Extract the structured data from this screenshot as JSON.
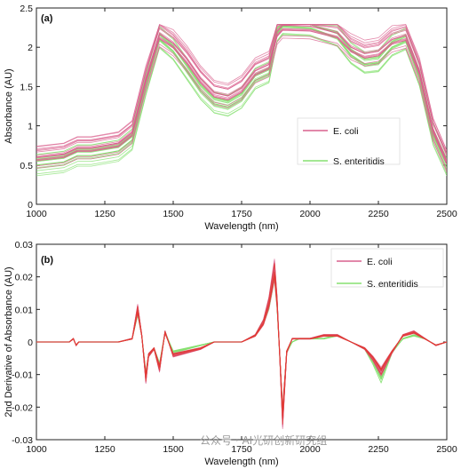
{
  "watermark": "公众号 · AI光研创新研究组",
  "chart_data": [
    {
      "type": "line",
      "panel_label": "(a)",
      "xlabel": "Wavelength (nm)",
      "ylabel": "Absorbance (AU)",
      "xlim": [
        1000,
        2500
      ],
      "ylim": [
        0,
        2.5
      ],
      "xticks": [
        1000,
        1250,
        1500,
        1750,
        2000,
        2250,
        2500
      ],
      "yticks": [
        0,
        0.5,
        1,
        1.5,
        2,
        2.5
      ],
      "xtick_labels": [
        "1000",
        "1250",
        "1500",
        "1750",
        "2000",
        "2250",
        "2500"
      ],
      "ytick_labels": [
        "0",
        "0.5",
        "1",
        "1.5",
        "2",
        "2.5"
      ],
      "legend_position": "center-right",
      "grid": false,
      "series": [
        {
          "name": "E. coli",
          "color": "#d9608e",
          "x": [
            1000,
            1100,
            1150,
            1200,
            1300,
            1350,
            1400,
            1450,
            1500,
            1550,
            1600,
            1650,
            1700,
            1750,
            1800,
            1850,
            1880,
            1900,
            2000,
            2100,
            2150,
            2200,
            2250,
            2300,
            2350,
            2400,
            2450,
            2500
          ],
          "y": [
            0.6,
            0.64,
            0.72,
            0.72,
            0.78,
            0.92,
            1.6,
            2.17,
            2.05,
            1.85,
            1.6,
            1.42,
            1.38,
            1.48,
            1.7,
            1.78,
            2.2,
            2.28,
            2.27,
            2.18,
            2.0,
            1.92,
            1.95,
            2.1,
            2.15,
            1.7,
            0.95,
            0.55
          ]
        },
        {
          "name": "S. enteritidis",
          "color": "#86e070",
          "x": [
            1000,
            1100,
            1150,
            1200,
            1300,
            1350,
            1400,
            1450,
            1500,
            1550,
            1600,
            1650,
            1700,
            1750,
            1800,
            1850,
            1880,
            1900,
            2000,
            2100,
            2150,
            2200,
            2250,
            2300,
            2350,
            2400,
            2450,
            2500
          ],
          "y": [
            0.5,
            0.54,
            0.62,
            0.62,
            0.68,
            0.82,
            1.5,
            2.1,
            1.95,
            1.7,
            1.45,
            1.28,
            1.24,
            1.34,
            1.58,
            1.66,
            2.18,
            2.27,
            2.25,
            2.12,
            1.9,
            1.78,
            1.8,
            2.0,
            2.08,
            1.62,
            0.88,
            0.5
          ]
        }
      ]
    },
    {
      "type": "line",
      "panel_label": "(b)",
      "xlabel": "Wavelength (nm)",
      "ylabel": "2nd Derivative of Absorbance (AU)",
      "xlim": [
        1000,
        2500
      ],
      "ylim": [
        -0.03,
        0.03
      ],
      "xticks": [
        1000,
        1250,
        1500,
        1750,
        2000,
        2250,
        2500
      ],
      "yticks": [
        -0.03,
        -0.02,
        -0.01,
        0,
        0.01,
        0.02,
        0.03
      ],
      "xtick_labels": [
        "1000",
        "1250",
        "1500",
        "1750",
        "2000",
        "2250",
        "2500"
      ],
      "ytick_labels": [
        "-0.03",
        "-0.02",
        "-0.01",
        "0",
        "0.01",
        "0.02",
        "0.03"
      ],
      "legend_position": "top-right",
      "grid": false,
      "series": [
        {
          "name": "E. coli",
          "color": "#d9608e",
          "x": [
            1000,
            1120,
            1135,
            1145,
            1155,
            1300,
            1350,
            1370,
            1385,
            1400,
            1410,
            1430,
            1450,
            1470,
            1500,
            1550,
            1600,
            1650,
            1700,
            1750,
            1800,
            1830,
            1850,
            1870,
            1880,
            1890,
            1900,
            1915,
            1935,
            1960,
            2000,
            2050,
            2100,
            2150,
            2200,
            2230,
            2260,
            2280,
            2300,
            2340,
            2380,
            2420,
            2460,
            2500
          ],
          "y": [
            0,
            0,
            0.001,
            -0.001,
            0,
            0,
            0.001,
            0.01,
            0.002,
            -0.011,
            -0.004,
            -0.002,
            -0.008,
            0.003,
            -0.004,
            -0.003,
            -0.002,
            0.0,
            0.0,
            0.0,
            0.002,
            0.006,
            0.012,
            0.022,
            0.012,
            -0.005,
            -0.023,
            -0.003,
            0.001,
            0.001,
            0.001,
            0.002,
            0.002,
            0.0,
            -0.002,
            -0.005,
            -0.009,
            -0.006,
            -0.003,
            0.002,
            0.003,
            0.001,
            -0.001,
            0.0
          ]
        },
        {
          "name": "S. enteritidis",
          "color": "#86e070",
          "x": [
            1000,
            1120,
            1135,
            1145,
            1155,
            1300,
            1350,
            1370,
            1385,
            1400,
            1410,
            1430,
            1450,
            1470,
            1500,
            1550,
            1600,
            1650,
            1700,
            1750,
            1800,
            1830,
            1850,
            1870,
            1880,
            1890,
            1900,
            1915,
            1935,
            1960,
            2000,
            2050,
            2100,
            2150,
            2200,
            2230,
            2260,
            2280,
            2300,
            2340,
            2380,
            2420,
            2460,
            2500
          ],
          "y": [
            0,
            0,
            0.001,
            -0.001,
            0,
            0,
            0.001,
            0.009,
            0.002,
            -0.01,
            -0.004,
            -0.002,
            -0.007,
            0.003,
            -0.003,
            -0.002,
            -0.001,
            0.0,
            0.0,
            0.0,
            0.002,
            0.006,
            0.011,
            0.021,
            0.011,
            -0.005,
            -0.022,
            -0.003,
            0.0,
            0.001,
            0.001,
            0.001,
            0.002,
            0.0,
            -0.002,
            -0.006,
            -0.011,
            -0.007,
            -0.003,
            0.001,
            0.002,
            0.001,
            -0.001,
            0.0
          ]
        }
      ]
    }
  ]
}
